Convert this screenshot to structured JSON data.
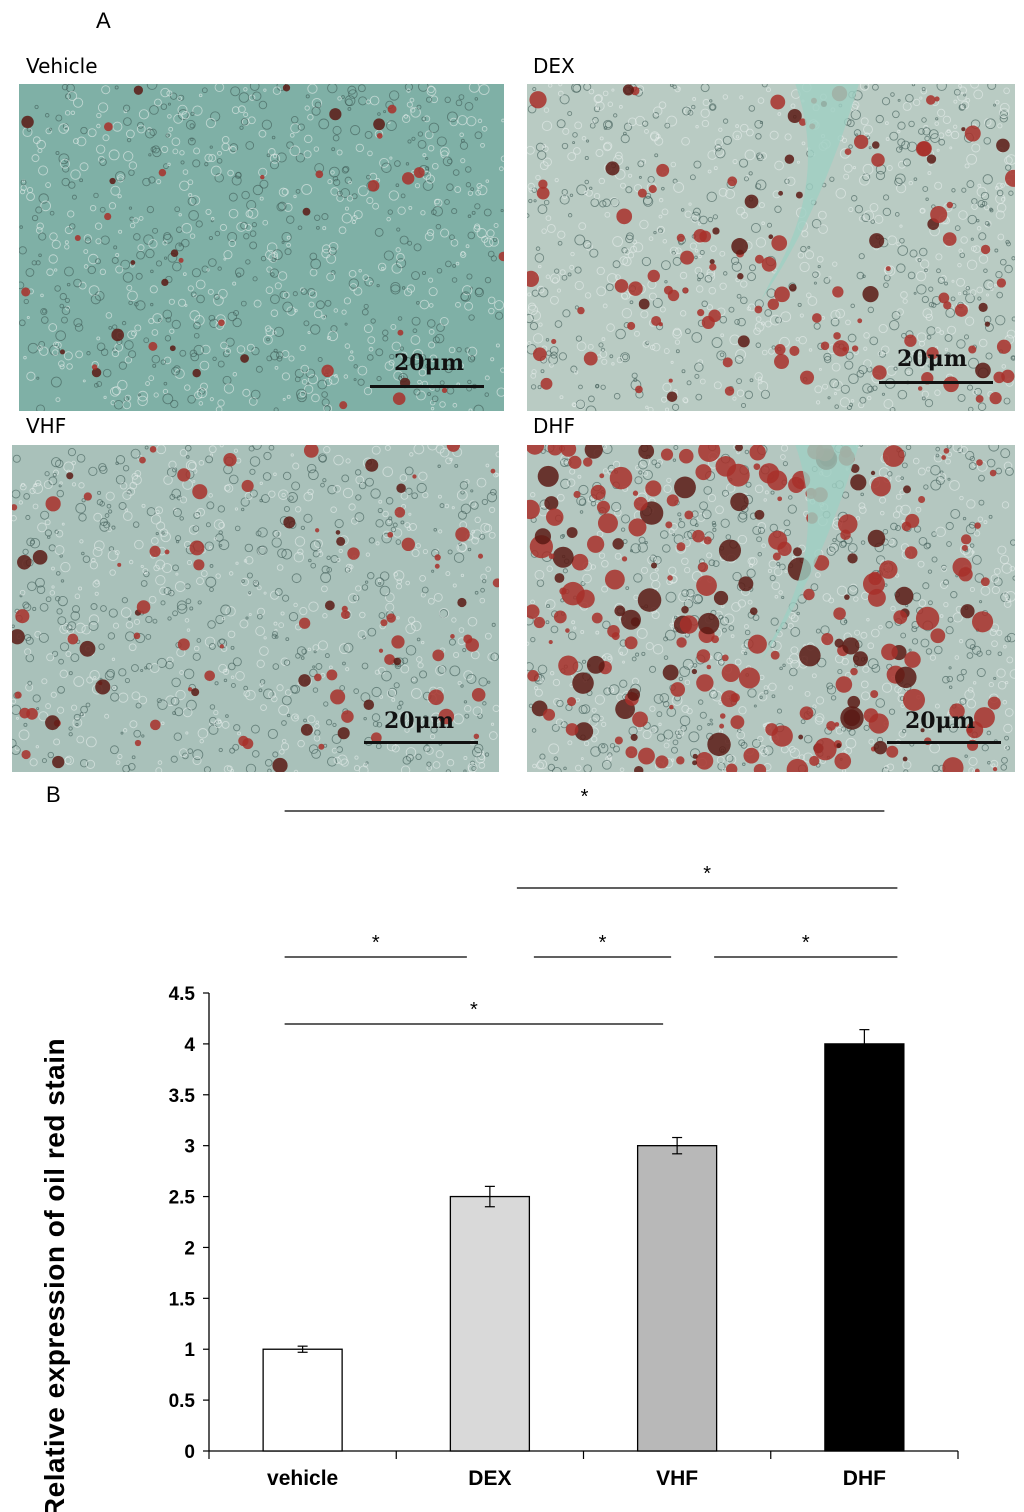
{
  "panels": {
    "a": "A",
    "b": "B"
  },
  "micrographs": [
    {
      "label": "Vehicle",
      "scale": "20μm",
      "bg": "#7fb0a6",
      "density": 0.15
    },
    {
      "label": "DEX",
      "scale": "20μm",
      "bg": "#b9cbc3",
      "density": 0.45
    },
    {
      "label": "VHF",
      "scale": "20μm",
      "bg": "#a9c1ba",
      "density": 0.35
    },
    {
      "label": "DHF",
      "scale": "20μm",
      "bg": "#b4c7c0",
      "density": 0.9
    }
  ],
  "chart_data": {
    "type": "bar",
    "title": "",
    "xlabel": "",
    "ylabel": "Relative expression of oil red stain",
    "categories": [
      "vehicle",
      "DEX",
      "VHF",
      "DHF"
    ],
    "values": [
      1.0,
      2.5,
      3.0,
      4.0
    ],
    "errors": [
      0.03,
      0.1,
      0.08,
      0.14
    ],
    "colors": [
      "#ffffff",
      "#d9d9d9",
      "#b8b8b8",
      "#000000"
    ],
    "ylim": [
      0,
      4.5
    ],
    "yticks": [
      "0",
      "0.5",
      "1",
      "1.5",
      "2",
      "2.5",
      "3",
      "3.5",
      "4",
      "4.5"
    ],
    "grid": false,
    "significance": [
      {
        "from": 0,
        "to": 3,
        "level": 4,
        "label": "*"
      },
      {
        "from": 1,
        "to": 3,
        "level": 3,
        "label": "*"
      },
      {
        "from": 0,
        "to": 1,
        "level": 2,
        "label": "*"
      },
      {
        "from": 1,
        "to": 2,
        "level": 2,
        "label": "*"
      },
      {
        "from": 2,
        "to": 3,
        "level": 2,
        "label": "*"
      },
      {
        "from": 0,
        "to": 2,
        "level": 1,
        "label": "*"
      }
    ]
  }
}
